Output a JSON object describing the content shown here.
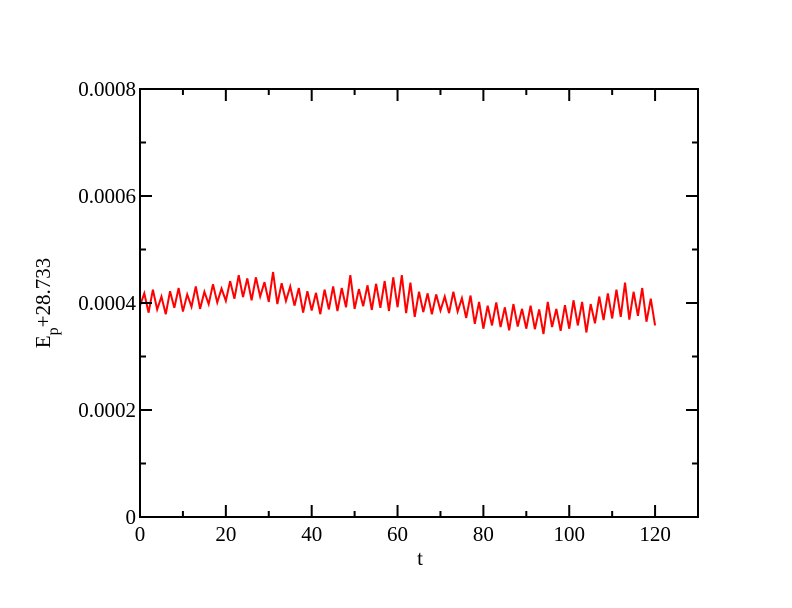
{
  "chart_data": {
    "type": "line",
    "xlabel": "t",
    "ylabel": {
      "main": "E",
      "sub": "p",
      "rest": "+28.733"
    },
    "color": "#ff0000",
    "xlim": [
      0,
      130
    ],
    "xticks": [
      0,
      20,
      40,
      60,
      80,
      100,
      120
    ],
    "ylim": [
      0,
      0.0008
    ],
    "yticks": [
      0,
      0.0002,
      0.0004,
      0.0006,
      0.0008
    ],
    "x": [
      0,
      1,
      2,
      3,
      4,
      5,
      6,
      7,
      8,
      9,
      10,
      11,
      12,
      13,
      14,
      15,
      16,
      17,
      18,
      19,
      20,
      21,
      22,
      23,
      24,
      25,
      26,
      27,
      28,
      29,
      30,
      31,
      32,
      33,
      34,
      35,
      36,
      37,
      38,
      39,
      40,
      41,
      42,
      43,
      44,
      45,
      46,
      47,
      48,
      49,
      50,
      51,
      52,
      53,
      54,
      55,
      56,
      57,
      58,
      59,
      60,
      61,
      62,
      63,
      64,
      65,
      66,
      67,
      68,
      69,
      70,
      71,
      72,
      73,
      74,
      75,
      76,
      77,
      78,
      79,
      80,
      81,
      82,
      83,
      84,
      85,
      86,
      87,
      88,
      89,
      90,
      91,
      92,
      93,
      94,
      95,
      96,
      97,
      98,
      99,
      100,
      101,
      102,
      103,
      104,
      105,
      106,
      107,
      108,
      109,
      110,
      111,
      112,
      113,
      114,
      115,
      116,
      117,
      118,
      119,
      120
    ],
    "values": [
      0.000395,
      0.000418,
      0.000382,
      0.000425,
      0.000388,
      0.000412,
      0.000379,
      0.000422,
      0.000391,
      0.000428,
      0.000384,
      0.000416,
      0.000393,
      0.000431,
      0.000389,
      0.000421,
      0.000398,
      0.000435,
      0.000401,
      0.000427,
      0.000404,
      0.000441,
      0.000408,
      0.000452,
      0.000411,
      0.000446,
      0.000405,
      0.000448,
      0.000412,
      0.000439,
      0.000402,
      0.000458,
      0.000398,
      0.000437,
      0.000404,
      0.000431,
      0.000395,
      0.000428,
      0.000382,
      0.000422,
      0.000386,
      0.000419,
      0.000379,
      0.000425,
      0.000388,
      0.000431,
      0.000385,
      0.000428,
      0.000392,
      0.000452,
      0.000389,
      0.000426,
      0.000394,
      0.000433,
      0.000387,
      0.000436,
      0.000391,
      0.000441,
      0.000385,
      0.000448,
      0.000392,
      0.000452,
      0.000381,
      0.000438,
      0.000374,
      0.000421,
      0.000383,
      0.000418,
      0.000379,
      0.000416,
      0.000386,
      0.000412,
      0.000381,
      0.000421,
      0.000384,
      0.000409,
      0.000372,
      0.000414,
      0.000361,
      0.000402,
      0.000352,
      0.000395,
      0.000358,
      0.000401,
      0.000355,
      0.000392,
      0.000349,
      0.000398,
      0.000356,
      0.000389,
      0.000352,
      0.000395,
      0.000351,
      0.000388,
      0.000342,
      0.000402,
      0.000355,
      0.000389,
      0.000348,
      0.000396,
      0.000352,
      0.000405,
      0.000358,
      0.000402,
      0.000345,
      0.000398,
      0.000362,
      0.000412,
      0.000368,
      0.000418,
      0.000371,
      0.000425,
      0.000374,
      0.000438,
      0.000369,
      0.000421,
      0.000376,
      0.000428,
      0.000365,
      0.000408,
      0.000358
    ]
  }
}
